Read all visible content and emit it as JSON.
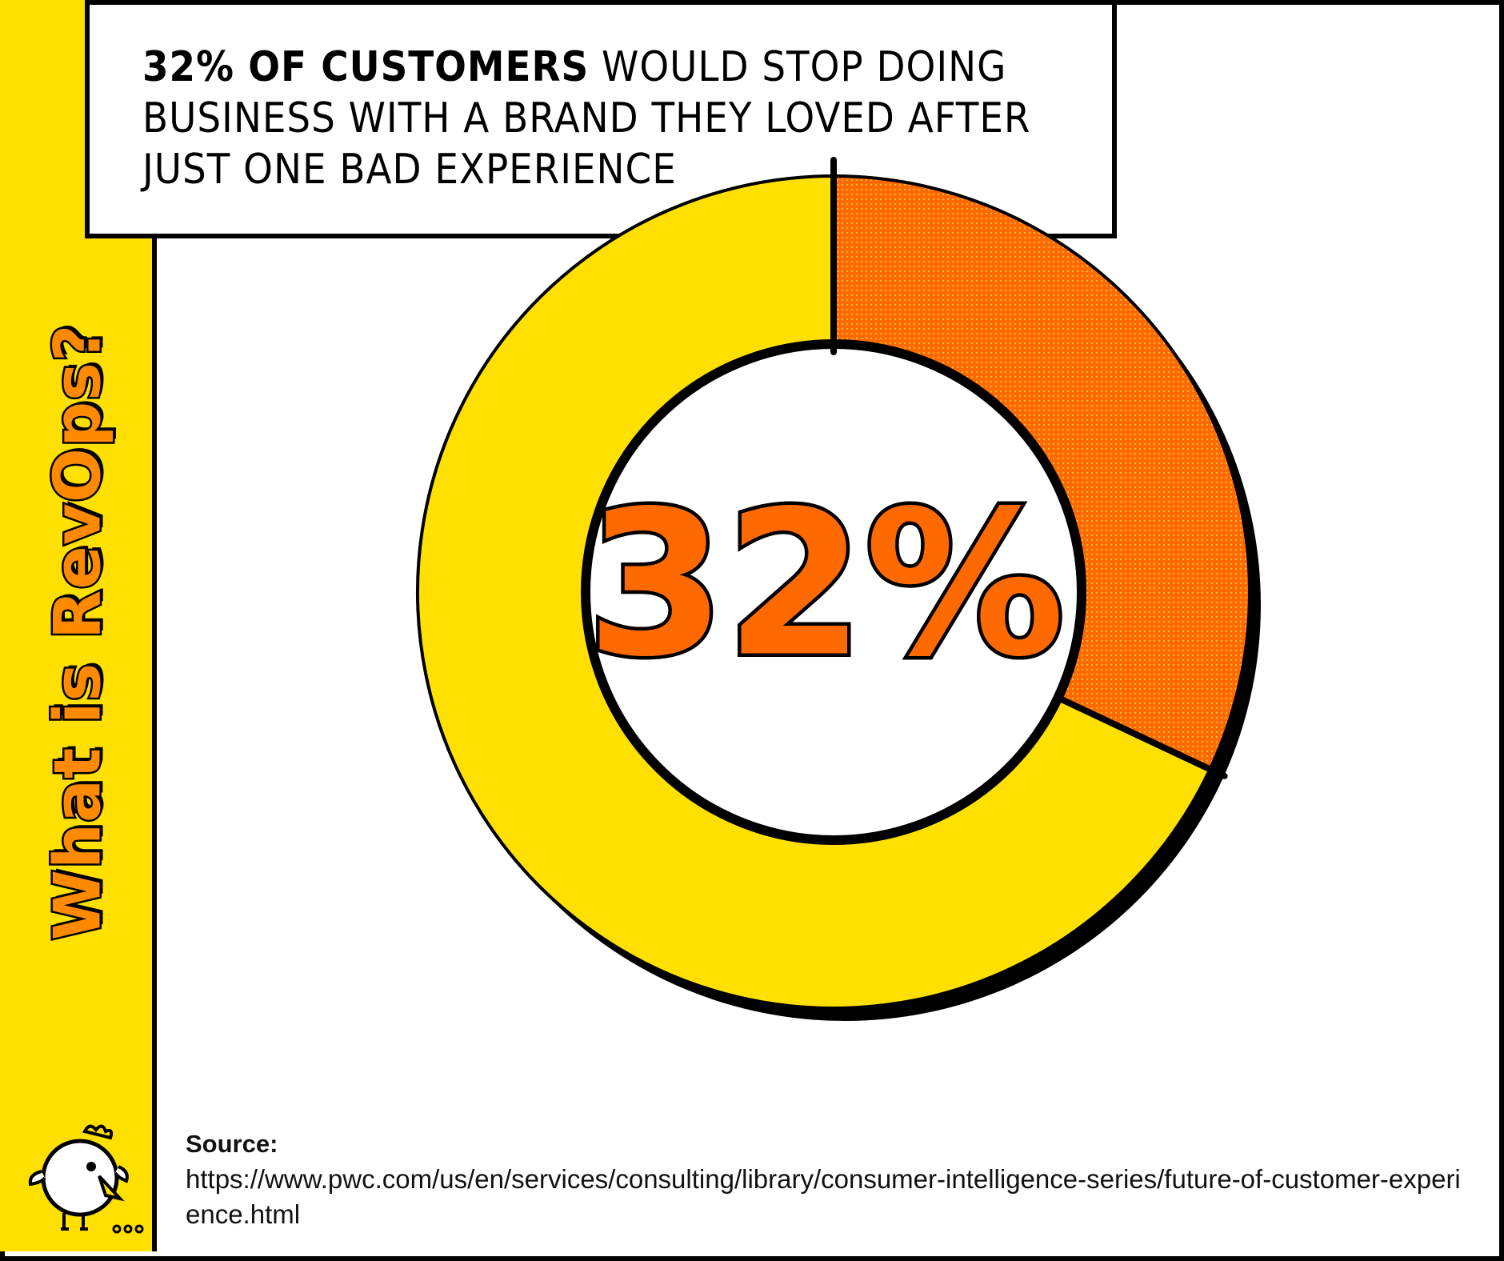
{
  "side_title": "What is RevOps?",
  "header": {
    "headline_strong": "32% OF CUSTOMERS",
    "headline_rest": " WOULD STOP DOING BUSINESS WITH A BRAND THEY LOVED AFTER JUST ONE BAD EXPERIENCE"
  },
  "chart_data": {
    "type": "pie",
    "center_label": "32%",
    "values": [
      32,
      68
    ],
    "colors": [
      "#ff6a00",
      "#ffe000"
    ]
  },
  "source": {
    "label": "Source:",
    "url": "https://www.pwc.com/us/en/services/consulting/library/consumer-intelligence-series/future-of-customer-experience.html"
  },
  "colors": {
    "yellow": "#ffe000",
    "orange": "#ff6a00",
    "title_orange": "#ff8a00",
    "outline": "#000000"
  },
  "mascot_icon": "chick-mascot-icon"
}
